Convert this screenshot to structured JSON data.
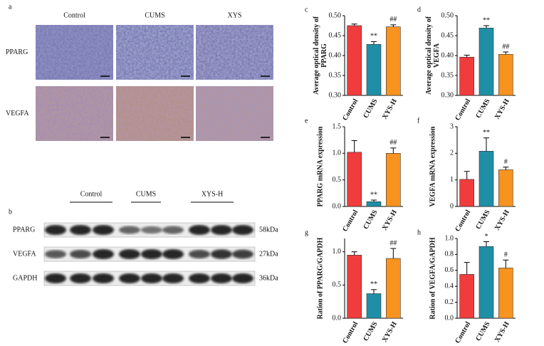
{
  "panel_a": {
    "panel": "a",
    "columns": [
      "Control",
      "CUMS",
      "XYS"
    ],
    "rows": [
      "PPARG",
      "VEGFA"
    ]
  },
  "panel_b": {
    "panel": "b",
    "groups": [
      "Control",
      "CUMS",
      "XYS-H"
    ],
    "rows": [
      {
        "name": "PPARG",
        "size": "58kDa"
      },
      {
        "name": "VEGFA",
        "size": "27kDa"
      },
      {
        "name": "GAPDH",
        "size": "36kDa"
      }
    ]
  },
  "chart_data": [
    {
      "type": "bar",
      "panel": "c",
      "ylabel": [
        "Average optical density of",
        "PPARG"
      ],
      "categories": [
        "Control",
        "CUMS",
        "XYS-H"
      ],
      "values": [
        0.475,
        0.428,
        0.472
      ],
      "errors": [
        0.004,
        0.007,
        0.005
      ],
      "annotations": [
        null,
        "**",
        "##"
      ],
      "colors": [
        "#f03c3c",
        "#1f8fa8",
        "#f7931e"
      ],
      "ylim": [
        0.3,
        0.5
      ],
      "yticks": [
        {
          "value": 0.3,
          "label": "0.30"
        },
        {
          "value": 0.35,
          "label": "0.35"
        },
        {
          "value": 0.4,
          "label": "0.40"
        },
        {
          "value": 0.45,
          "label": "0.45"
        },
        {
          "value": 0.5,
          "label": "0.50"
        }
      ]
    },
    {
      "type": "bar",
      "panel": "d",
      "ylabel": [
        "Average optical density of",
        "VEGFA"
      ],
      "categories": [
        "Control",
        "CUMS",
        "XYS-H"
      ],
      "values": [
        0.396,
        0.469,
        0.403
      ],
      "errors": [
        0.005,
        0.006,
        0.006
      ],
      "annotations": [
        null,
        "**",
        "##"
      ],
      "colors": [
        "#f03c3c",
        "#1f8fa8",
        "#f7931e"
      ],
      "ylim": [
        0.3,
        0.5
      ],
      "yticks": [
        {
          "value": 0.3,
          "label": "0.30"
        },
        {
          "value": 0.35,
          "label": "0.35"
        },
        {
          "value": 0.4,
          "label": "0.40"
        },
        {
          "value": 0.45,
          "label": "0.45"
        },
        {
          "value": 0.5,
          "label": "0.50"
        }
      ]
    },
    {
      "type": "bar",
      "panel": "e",
      "ylabel": [
        "PPARG mRNA expression"
      ],
      "categories": [
        "Control",
        "CUMS",
        "XYS-H"
      ],
      "values": [
        1.02,
        0.09,
        1.0
      ],
      "errors": [
        0.22,
        0.03,
        0.1
      ],
      "annotations": [
        null,
        "**",
        "##"
      ],
      "colors": [
        "#f03c3c",
        "#1f8fa8",
        "#f7931e"
      ],
      "ylim": [
        0,
        1.5
      ],
      "yticks": [
        {
          "value": 0,
          "label": "0.0"
        },
        0.5,
        {
          "value": 1,
          "label": "1.0"
        },
        1.5
      ]
    },
    {
      "type": "bar",
      "panel": "f",
      "ylabel": [
        "VEGFA mRNA expression"
      ],
      "categories": [
        "Control",
        "CUMS",
        "XYS-H"
      ],
      "values": [
        1.02,
        2.08,
        1.38
      ],
      "errors": [
        0.3,
        0.5,
        0.1
      ],
      "annotations": [
        null,
        "**",
        "#"
      ],
      "colors": [
        "#f03c3c",
        "#1f8fa8",
        "#f7931e"
      ],
      "ylim": [
        0,
        3
      ],
      "yticks": [
        0,
        1,
        2,
        3
      ]
    },
    {
      "type": "bar",
      "panel": "g",
      "ylabel": [
        "Ration of PPARG/GAPDH"
      ],
      "categories": [
        "Control",
        "CUMS",
        "XYS-H"
      ],
      "values": [
        0.95,
        0.37,
        0.9
      ],
      "errors": [
        0.05,
        0.06,
        0.15
      ],
      "annotations": [
        null,
        "**",
        "##"
      ],
      "colors": [
        "#f03c3c",
        "#1f8fa8",
        "#f7931e"
      ],
      "ylim": [
        0,
        1.2
      ],
      "yticks": [
        {
          "value": 0,
          "label": "0.0"
        },
        0.5,
        {
          "value": 1,
          "label": "1.0"
        }
      ]
    },
    {
      "type": "bar",
      "panel": "h",
      "ylabel": [
        "Ration of VEGFA/GAPDH"
      ],
      "categories": [
        "Control",
        "CUMS",
        "XYS-H"
      ],
      "values": [
        0.55,
        0.9,
        0.63
      ],
      "errors": [
        0.15,
        0.06,
        0.1
      ],
      "annotations": [
        null,
        "*",
        "#"
      ],
      "colors": [
        "#f03c3c",
        "#1f8fa8",
        "#f7931e"
      ],
      "ylim": [
        0,
        1
      ],
      "yticks": [
        {
          "value": 0,
          "label": "0.0"
        },
        0.2,
        0.4,
        0.6,
        0.8,
        {
          "value": 1,
          "label": "1.0"
        }
      ]
    }
  ]
}
